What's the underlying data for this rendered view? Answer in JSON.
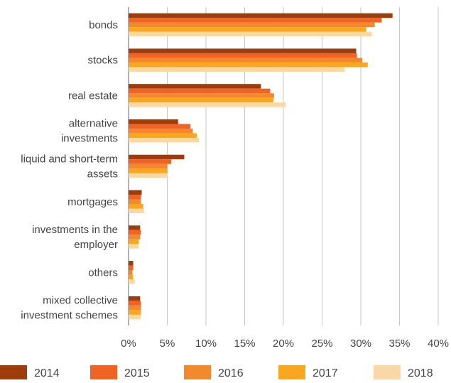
{
  "chart_data": {
    "type": "bar",
    "orientation": "horizontal",
    "categories": [
      "bonds",
      "stocks",
      "real estate",
      "alternative investments",
      "liquid and short-term assets",
      "mortgages",
      "investments in the employer",
      "others",
      "mixed collective investment schemes"
    ],
    "category_label_lines": [
      [
        "bonds"
      ],
      [
        "stocks"
      ],
      [
        "real estate"
      ],
      [
        "alternative",
        "investments"
      ],
      [
        "liquid and short-term",
        "assets"
      ],
      [
        "mortgages"
      ],
      [
        "investments in the",
        "employer"
      ],
      [
        "others"
      ],
      [
        "mixed collective",
        "investment schemes"
      ]
    ],
    "series": [
      {
        "name": "2014",
        "color": "#9e3c0a",
        "values": [
          34.1,
          29.4,
          17.1,
          6.4,
          7.2,
          1.7,
          1.5,
          0.6,
          1.5
        ]
      },
      {
        "name": "2015",
        "color": "#ef6424",
        "values": [
          32.7,
          29.5,
          18.3,
          8.0,
          5.5,
          1.6,
          1.6,
          0.6,
          1.6
        ]
      },
      {
        "name": "2016",
        "color": "#f2892c",
        "values": [
          31.8,
          30.2,
          18.8,
          8.3,
          5.0,
          1.6,
          1.5,
          0.5,
          1.6
        ]
      },
      {
        "name": "2017",
        "color": "#f8a71e",
        "values": [
          30.7,
          30.9,
          18.7,
          8.8,
          5.0,
          1.9,
          1.3,
          0.6,
          1.6
        ]
      },
      {
        "name": "2018",
        "color": "#f9d8a6",
        "values": [
          31.4,
          27.9,
          20.3,
          9.1,
          5.0,
          2.0,
          1.3,
          0.8,
          1.6
        ]
      }
    ],
    "xlim": [
      0,
      40
    ],
    "x_ticks": [
      "0%",
      "5%",
      "10%",
      "15%",
      "20%",
      "25%",
      "30%",
      "35%",
      "40%"
    ],
    "grid": "vertical",
    "legend_position": "bottom"
  }
}
